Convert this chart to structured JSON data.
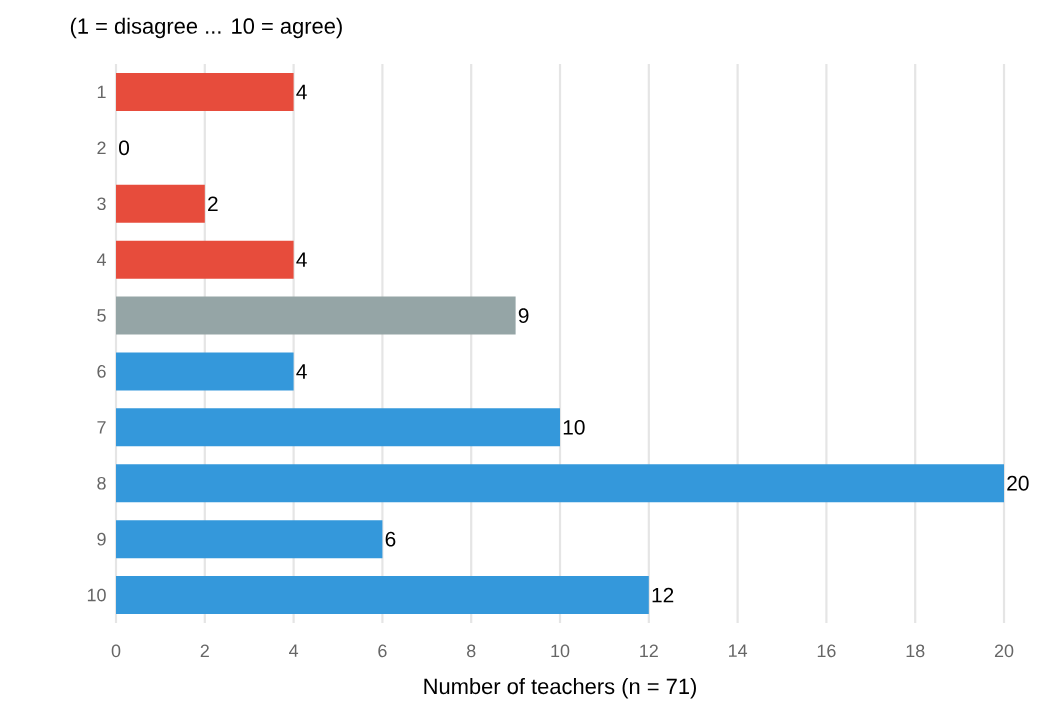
{
  "chart_data": {
    "type": "bar",
    "orientation": "horizontal",
    "title": "(1 = disagree ... 10 = agree)",
    "xlabel": "Number of teachers (n = 71)",
    "categories": [
      "1",
      "2",
      "3",
      "4",
      "5",
      "6",
      "7",
      "8",
      "9",
      "10"
    ],
    "values": [
      4,
      0,
      2,
      4,
      9,
      4,
      10,
      20,
      6,
      12
    ],
    "colors": [
      "#e74c3c",
      "#e74c3c",
      "#e74c3c",
      "#e74c3c",
      "#95a5a6",
      "#3498db",
      "#3498db",
      "#3498db",
      "#3498db",
      "#3498db"
    ],
    "xlim": [
      0,
      20
    ],
    "xticks": [
      0,
      2,
      4,
      6,
      8,
      10,
      12,
      14,
      16,
      18,
      20
    ],
    "grid": "x",
    "data_labels": true
  }
}
